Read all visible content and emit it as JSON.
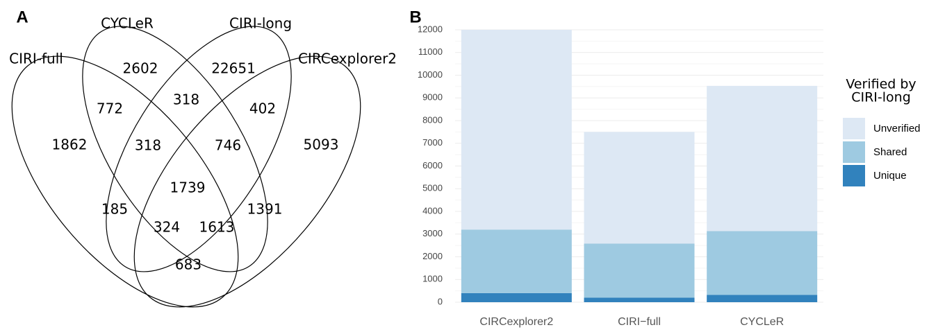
{
  "chart_data": [
    {
      "type": "venn",
      "panel_label": "A",
      "sets": [
        "CIRI-full",
        "CYCLeR",
        "CIRI-long",
        "CIRCexplorer2"
      ],
      "values": [
        1862,
        2602,
        22651,
        5093,
        772,
        318,
        402,
        318,
        746,
        1739,
        185,
        324,
        1613,
        1391,
        683
      ]
    },
    {
      "type": "bar",
      "stacked": true,
      "panel_label": "B",
      "categories": [
        "CIRCexplorer2",
        "CIRI−full",
        "CYCLeR"
      ],
      "series": [
        {
          "name": "Unique",
          "color": "#3182bd",
          "values": [
            400,
            200,
            320
          ]
        },
        {
          "name": "Shared",
          "color": "#9ecae1",
          "values": [
            2800,
            2380,
            2810
          ]
        },
        {
          "name": "Unverified",
          "color": "#dde8f4",
          "values": [
            8800,
            4920,
            6400
          ]
        }
      ],
      "legend_title": [
        "Verified by",
        "CIRI-long"
      ],
      "ylim": [
        0,
        12000
      ],
      "yticks": [
        0,
        1000,
        2000,
        3000,
        4000,
        5000,
        6000,
        7000,
        8000,
        9000,
        10000,
        11000,
        12000
      ],
      "grid": true
    }
  ]
}
